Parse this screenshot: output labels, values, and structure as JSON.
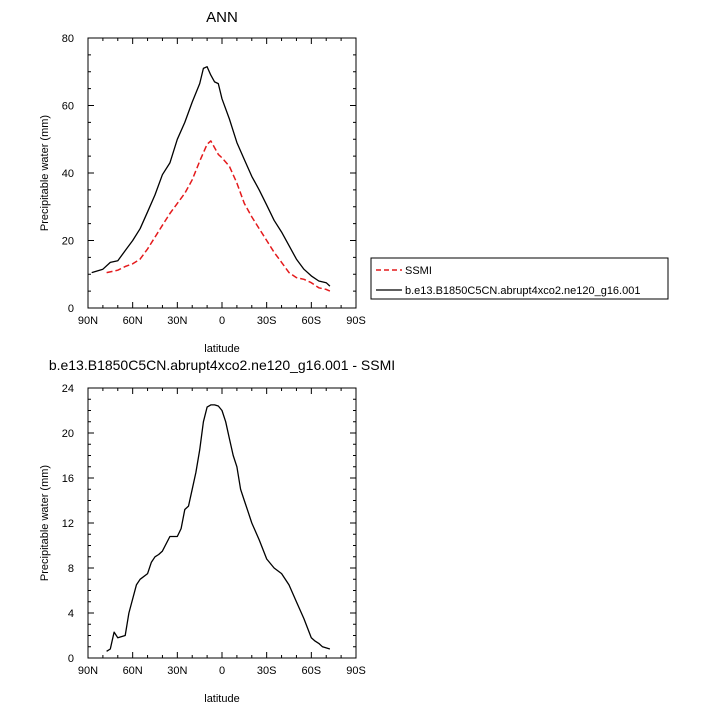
{
  "chart_data": [
    {
      "type": "line",
      "title": "ANN",
      "xlabel": "latitude",
      "ylabel": "Precipitable water (mm)",
      "xlim": [
        90,
        -90
      ],
      "ylim": [
        0,
        80
      ],
      "xticks": [
        90,
        60,
        30,
        0,
        -30,
        -60,
        -90
      ],
      "xticklabels": [
        "90N",
        "60N",
        "30N",
        "0",
        "30S",
        "60S",
        "90S"
      ],
      "yticks": [
        0,
        20,
        40,
        60,
        80
      ],
      "yticklabels": [
        "0",
        "20",
        "40",
        "60",
        "80"
      ],
      "legend_position": "outside-right",
      "series": [
        {
          "name": "SSMI",
          "color": "#e41a1c",
          "dash": "dashed",
          "x": [
            77.5,
            70,
            65,
            60,
            55,
            50,
            45,
            40,
            35,
            30,
            25,
            20,
            15,
            10,
            7.5,
            5,
            2.5,
            0,
            -5,
            -10,
            -15,
            -20,
            -25,
            -30,
            -35,
            -40,
            -45,
            -50,
            -55,
            -60,
            -65,
            -70,
            -72.5
          ],
          "y": [
            10.5,
            11.2,
            12.3,
            13.1,
            14.5,
            17.5,
            21.0,
            24.5,
            28.0,
            31.0,
            34.0,
            38.0,
            43.5,
            48.5,
            49.5,
            47.5,
            45.5,
            44.5,
            42.0,
            37.0,
            31.0,
            27.0,
            23.5,
            20.0,
            16.5,
            13.5,
            10.5,
            9.0,
            8.5,
            7.5,
            6.0,
            5.5,
            5.0
          ]
        },
        {
          "name": "b.e13.B1850C5CN.abrupt4xco2.ne120_g16.001",
          "color": "#000000",
          "dash": "solid",
          "x": [
            87.5,
            80,
            75,
            70,
            65,
            60,
            55,
            50,
            45,
            40,
            35,
            30,
            25,
            20,
            15,
            12.5,
            10,
            7.5,
            5,
            2.5,
            0,
            -5,
            -10,
            -15,
            -20,
            -25,
            -30,
            -35,
            -40,
            -45,
            -50,
            -55,
            -60,
            -65,
            -70,
            -72.5
          ],
          "y": [
            10.5,
            11.5,
            13.5,
            14.0,
            17.0,
            20.0,
            23.5,
            28.5,
            33.5,
            39.5,
            43.0,
            50.0,
            55.0,
            61.0,
            66.5,
            71.0,
            71.5,
            69.0,
            67.0,
            66.5,
            62.0,
            56.0,
            49.0,
            44.0,
            39.0,
            35.0,
            30.5,
            26.0,
            22.5,
            18.5,
            14.5,
            11.5,
            9.5,
            8.0,
            7.5,
            6.5
          ]
        }
      ]
    },
    {
      "type": "line",
      "title": "b.e13.B1850C5CN.abrupt4xco2.ne120_g16.001 - SSMI",
      "xlabel": "latitude",
      "ylabel": "Precipitable water (mm)",
      "xlim": [
        90,
        -90
      ],
      "ylim": [
        0,
        24
      ],
      "xticks": [
        90,
        60,
        30,
        0,
        -30,
        -60,
        -90
      ],
      "xticklabels": [
        "90N",
        "60N",
        "30N",
        "0",
        "30S",
        "60S",
        "90S"
      ],
      "yticks": [
        0,
        4,
        8,
        12,
        16,
        20,
        24
      ],
      "yticklabels": [
        "0",
        "4",
        "8",
        "12",
        "16",
        "20",
        "24"
      ],
      "series": [
        {
          "color": "#000000",
          "dash": "solid",
          "x": [
            77.5,
            75,
            72.5,
            70,
            65,
            62.5,
            57.5,
            55,
            50,
            47.5,
            45,
            42.5,
            40,
            35,
            30,
            27.5,
            25,
            22.5,
            20,
            17.5,
            15,
            12.5,
            10,
            7.5,
            5,
            2.5,
            0,
            -2.5,
            -5,
            -7.5,
            -10,
            -12.5,
            -15,
            -17.5,
            -20,
            -25,
            -30,
            -35,
            -40,
            -45,
            -50,
            -55,
            -60,
            -62.5,
            -65,
            -67.5,
            -70,
            -72.5
          ],
          "y": [
            0.6,
            0.8,
            2.3,
            1.8,
            2.0,
            4.0,
            6.5,
            7.0,
            7.5,
            8.5,
            9.0,
            9.2,
            9.5,
            10.8,
            10.8,
            11.5,
            13.2,
            13.5,
            15.0,
            16.5,
            18.5,
            21.0,
            22.3,
            22.5,
            22.5,
            22.4,
            22.0,
            21.0,
            19.5,
            18.0,
            17.0,
            15.0,
            14.0,
            13.0,
            12.0,
            10.5,
            8.8,
            8.0,
            7.5,
            6.5,
            5.0,
            3.5,
            1.8,
            1.5,
            1.3,
            1.0,
            0.9,
            0.8
          ]
        }
      ]
    }
  ]
}
